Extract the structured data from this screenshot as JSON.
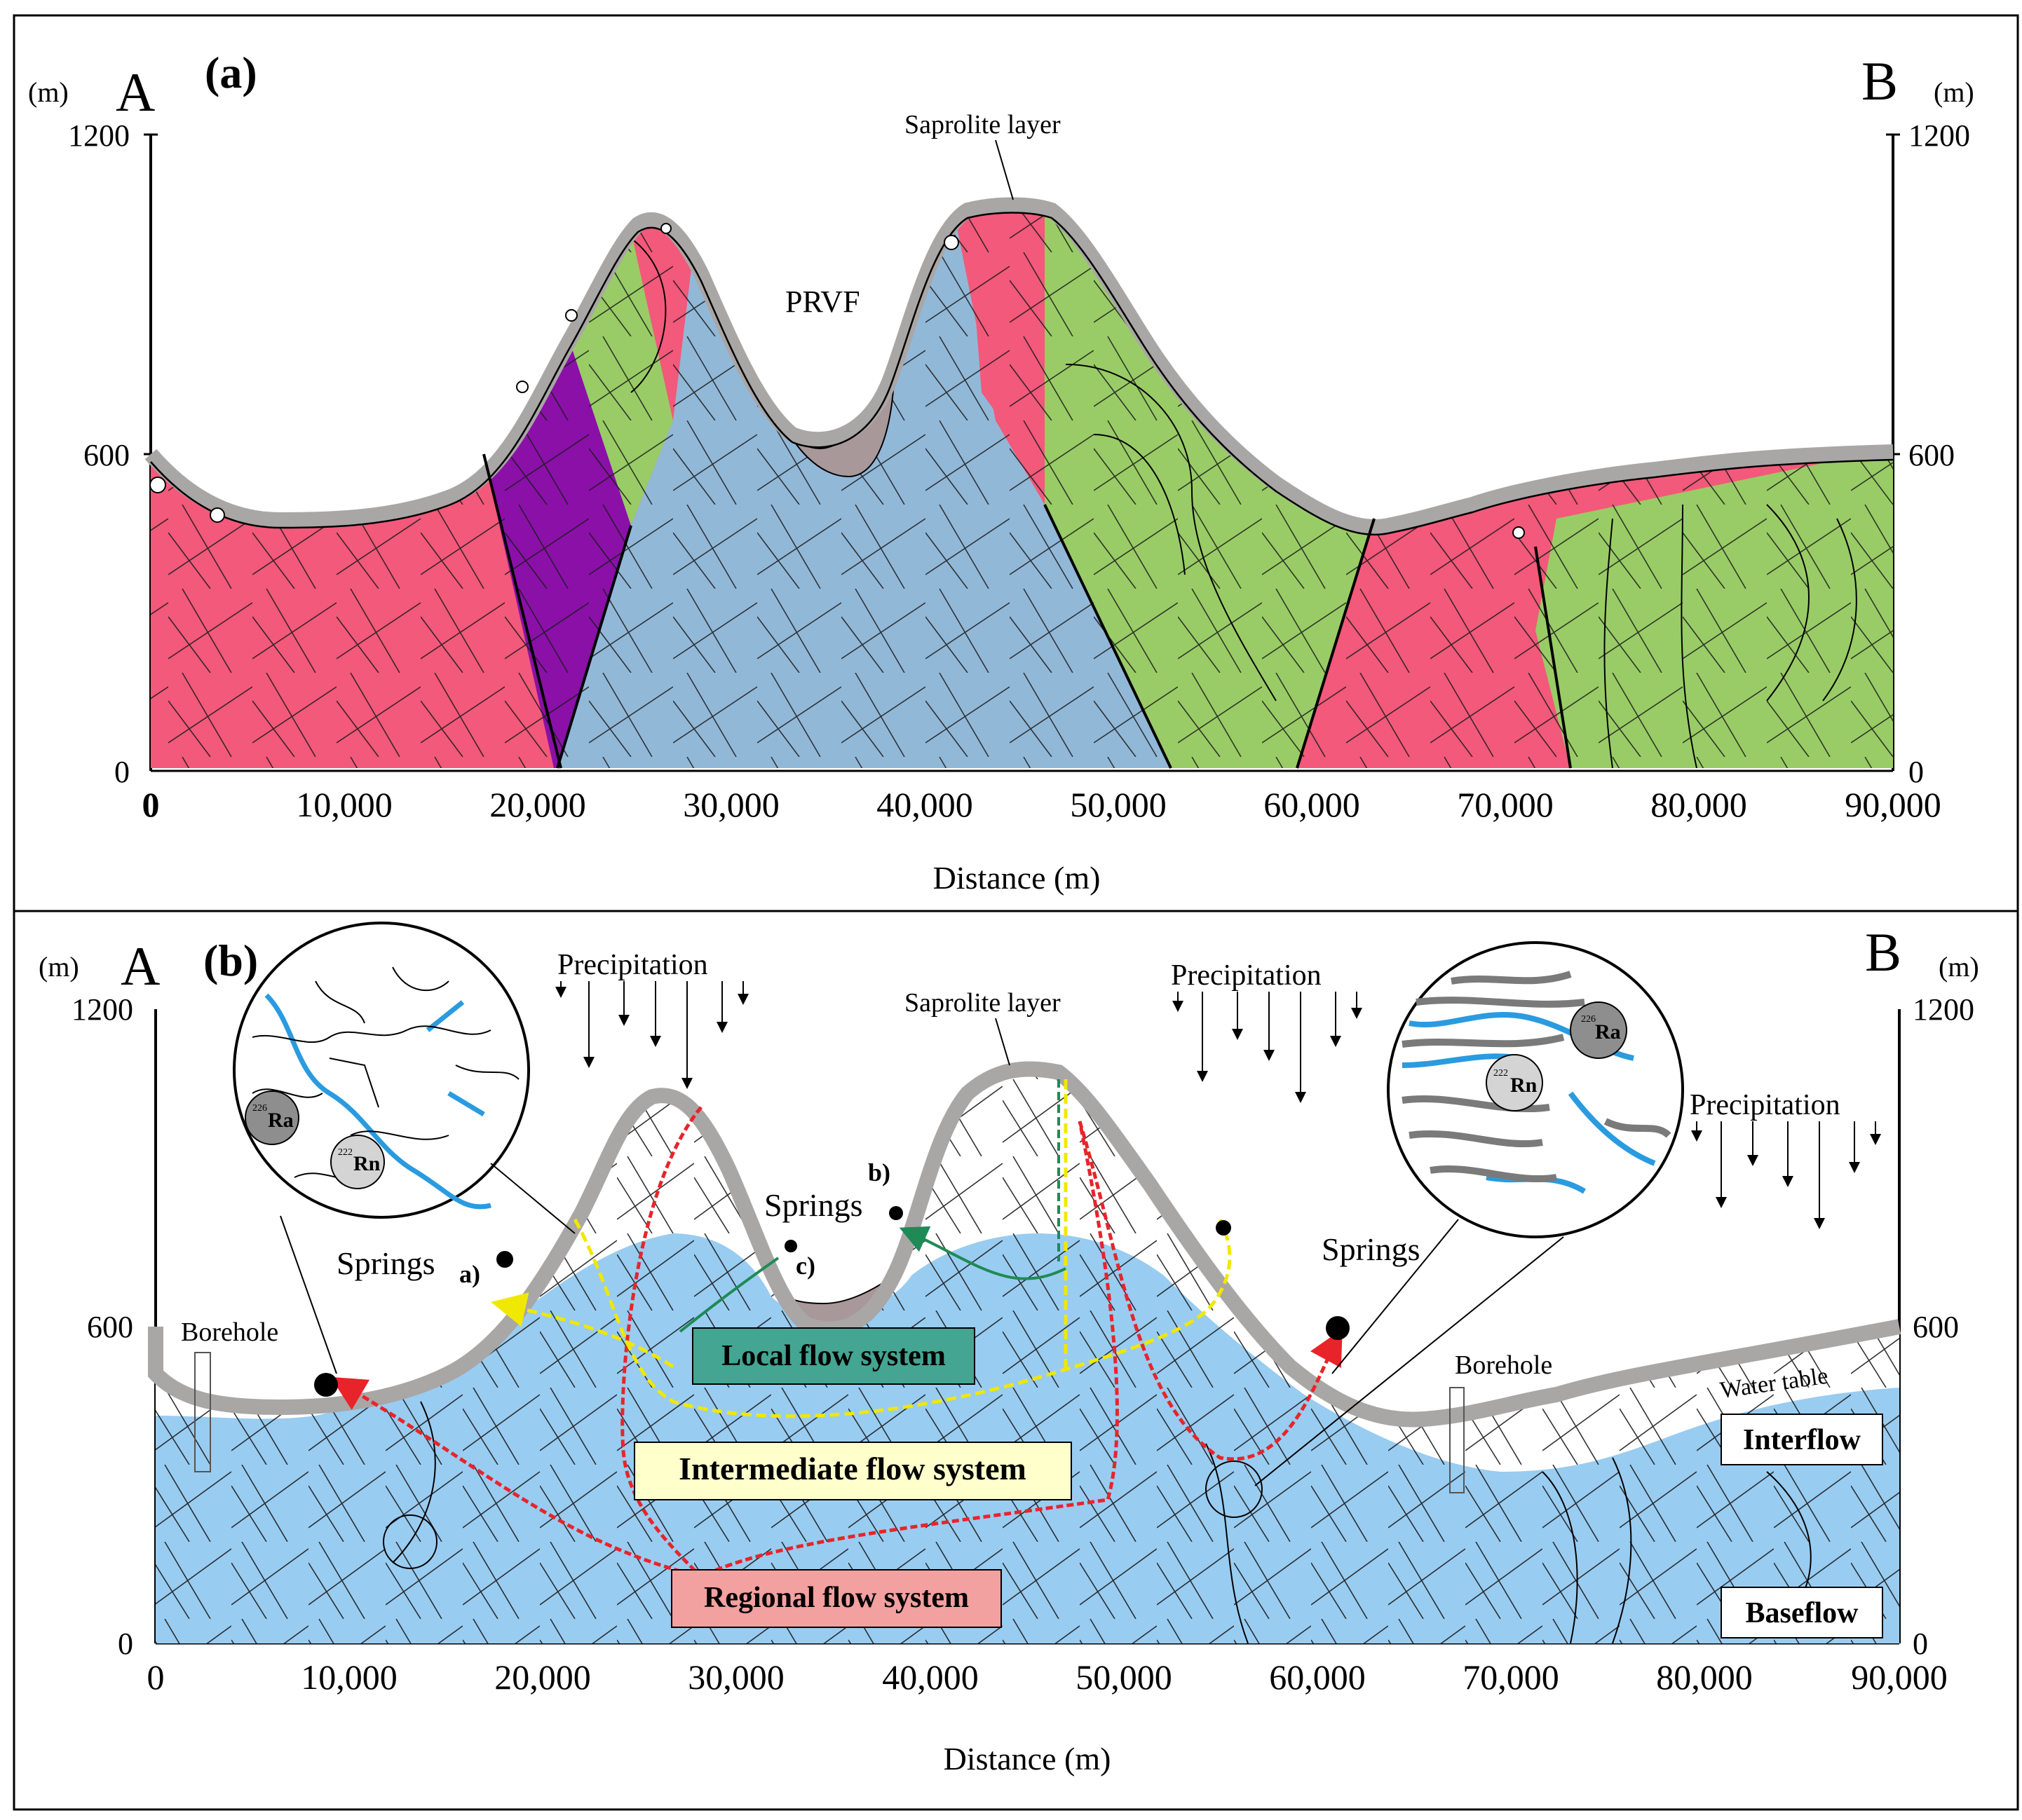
{
  "panel_a": {
    "label": "(a)",
    "left_end": "A",
    "right_end": "B",
    "unit": "(m)",
    "y_ticks": [
      "1200",
      "600",
      "0"
    ],
    "x_ticks": [
      "0",
      "10,000",
      "20,000",
      "30,000",
      "40,000",
      "50,000",
      "60,000",
      "70,000",
      "80,000",
      "90,000"
    ],
    "x_label": "Distance (m)",
    "saprolite_label": "Saprolite layer",
    "prvf_label": "PRVF"
  },
  "panel_b": {
    "label": "(b)",
    "left_end": "A",
    "right_end": "B",
    "unit": "(m)",
    "y_ticks": [
      "1200",
      "600",
      "0"
    ],
    "x_ticks": [
      "0",
      "10,000",
      "20,000",
      "30,000",
      "40,000",
      "50,000",
      "60,000",
      "70,000",
      "80,000",
      "90,000"
    ],
    "x_label": "Distance (m)",
    "saprolite_label": "Saprolite layer",
    "precipitation_labels": [
      "Precipitation",
      "Precipitation",
      "Precipitation"
    ],
    "springs_labels": [
      "Springs",
      "Springs",
      "Springs"
    ],
    "spring_points": [
      "a)",
      "b)",
      "c)"
    ],
    "borehole_labels": [
      "Borehole",
      "Borehole"
    ],
    "water_table_label": "Water table",
    "local_flow": "Local flow system",
    "intermediate_flow": "Intermediate flow system",
    "regional_flow": "Regional flow system",
    "interflow": "Interflow",
    "baseflow": "Baseflow",
    "inset_left": {
      "ra": "Ra",
      "ra_mass": "226",
      "rn": "Rn",
      "rn_mass": "222"
    },
    "inset_right": {
      "ra": "Ra",
      "ra_mass": "226",
      "rn": "Rn",
      "rn_mass": "222"
    }
  },
  "colors": {
    "granite_pink": "#f2597a",
    "metased_green": "#99cc66",
    "volcanic_blue": "#92b8d8",
    "purple_unit": "#8a10a8",
    "saprolite_gray": "#a9a6a6",
    "valley_fill": "#a8989a",
    "aquifer_blue": "#99ccf1",
    "local_box": "#43a592",
    "intermediate_box": "#ffffcc",
    "regional_box": "#f3a0a0",
    "water_blue": "#2a9bdf"
  }
}
